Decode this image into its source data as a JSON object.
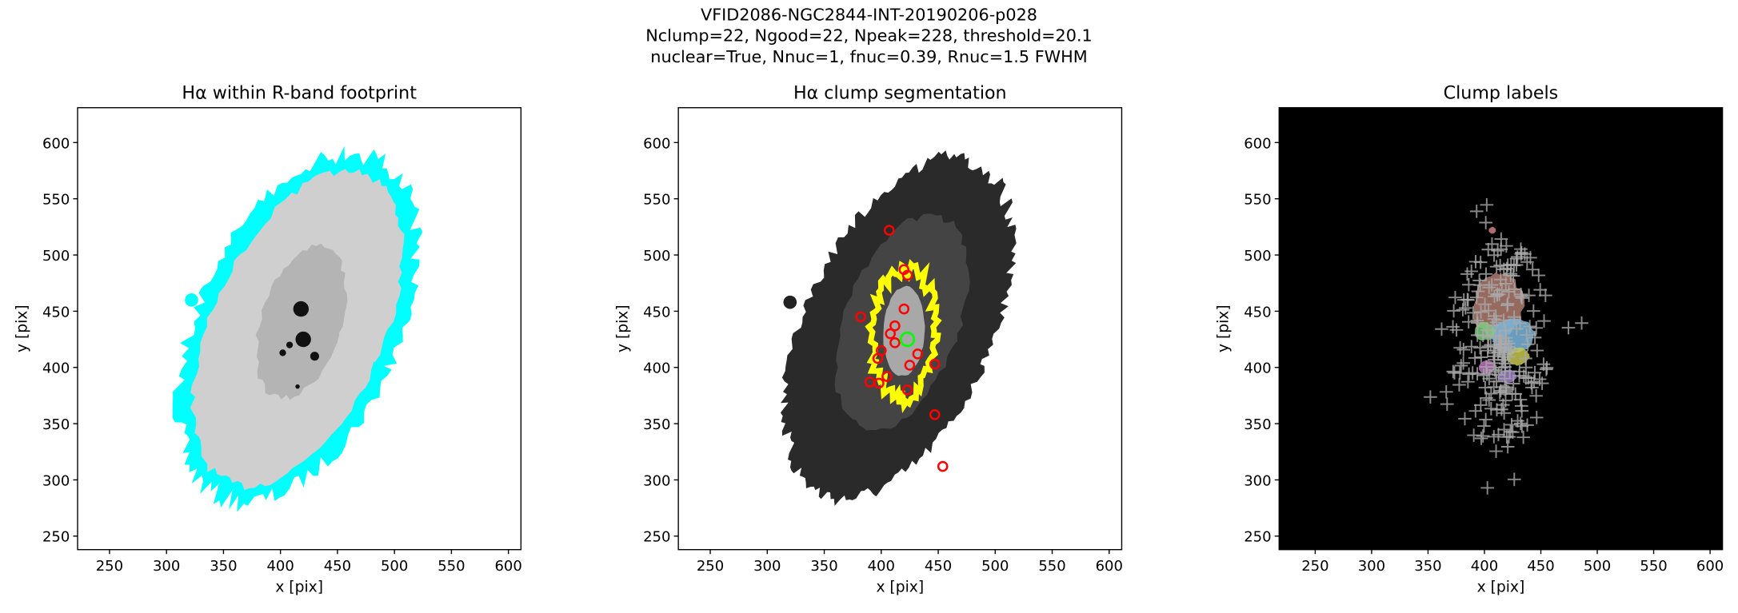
{
  "figure": {
    "title_lines": [
      "VFID2086-NGC2844-INT-20190206-p028",
      "Nclump=22, Ngood=22, Npeak=228, threshold=20.1",
      "nuclear=True, Nnuc=1, fnuc=0.39, Rnuc=1.5 FWHM"
    ]
  },
  "chart_data": [
    {
      "type": "image",
      "title": "Hα within R-band footprint",
      "xlabel": "x [pix]",
      "ylabel": "y [pix]",
      "facecolor": "#ffffff",
      "xlim": [
        222,
        611
      ],
      "ylim": [
        238,
        631
      ],
      "xticks": [
        250,
        300,
        350,
        400,
        450,
        500,
        550,
        600
      ],
      "yticks": [
        250,
        300,
        350,
        400,
        450,
        500,
        550,
        600
      ]
    },
    {
      "type": "image",
      "title": "Hα clump segmentation",
      "xlabel": "x [pix]",
      "ylabel": "y [pix]",
      "facecolor": "#ffffff",
      "xlim": [
        222,
        611
      ],
      "ylim": [
        238,
        631
      ],
      "xticks": [
        250,
        300,
        350,
        400,
        450,
        500,
        550,
        600
      ],
      "yticks": [
        250,
        300,
        350,
        400,
        450,
        500,
        550,
        600
      ]
    },
    {
      "type": "image",
      "title": "Clump labels",
      "xlabel": "x [pix]",
      "ylabel": "y [pix]",
      "facecolor": "#000000",
      "xlim": [
        218,
        611
      ],
      "ylim": [
        238,
        631
      ],
      "xticks": [
        250,
        300,
        350,
        400,
        450,
        500,
        550,
        600
      ],
      "yticks": [
        250,
        300,
        350,
        400,
        450,
        500,
        550,
        600
      ]
    }
  ]
}
